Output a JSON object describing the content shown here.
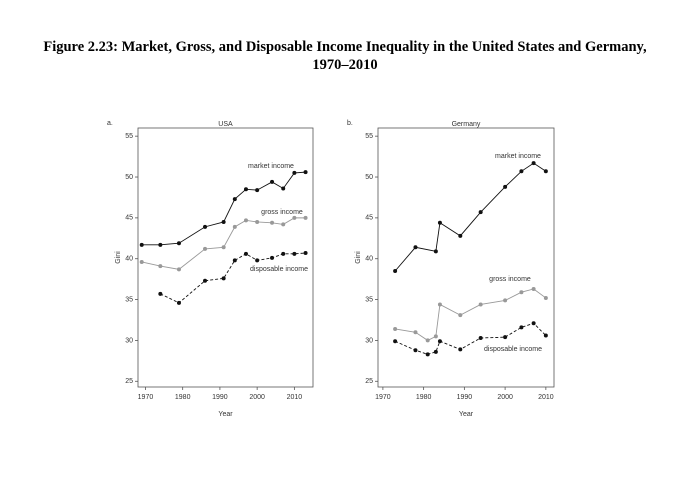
{
  "title": "Figure 2.23: Market, Gross, and Disposable Income Inequality in the United States and Germany, 1970–2010",
  "chart_data": [
    {
      "type": "line",
      "label": "a.",
      "title": "USA",
      "x_label": "Year",
      "y_label": "Gini",
      "xlim": [
        1968,
        2015
      ],
      "xticks": [
        1970,
        1980,
        1990,
        2000,
        2010
      ],
      "ylim": [
        24.3,
        56
      ],
      "yticks": [
        25,
        30,
        35,
        40,
        45,
        50,
        55
      ],
      "series": [
        {
          "name": "market income",
          "color": "#111111",
          "dashed": false,
          "x": [
            1969,
            1974,
            1979,
            1986,
            1991,
            1994,
            1997,
            2000,
            2004,
            2007,
            2010,
            2013
          ],
          "values": [
            41.7,
            41.7,
            41.9,
            43.9,
            44.5,
            47.3,
            48.5,
            48.4,
            49.4,
            48.6,
            50.5,
            50.6
          ]
        },
        {
          "name": "gross income",
          "color": "#999999",
          "dashed": false,
          "x": [
            1969,
            1974,
            1979,
            1986,
            1991,
            1994,
            1997,
            2000,
            2004,
            2007,
            2010,
            2013
          ],
          "values": [
            39.6,
            39.1,
            38.7,
            41.2,
            41.4,
            43.9,
            44.7,
            44.5,
            44.4,
            44.2,
            45.0,
            45.0
          ]
        },
        {
          "name": "disposable income",
          "color": "#111111",
          "dashed": true,
          "x": [
            1974,
            1979,
            1986,
            1991,
            1994,
            1997,
            2000,
            2004,
            2007,
            2010,
            2013
          ],
          "values": [
            35.7,
            34.6,
            37.3,
            37.6,
            39.8,
            40.6,
            39.8,
            40.1,
            40.6,
            40.6,
            40.7
          ]
        }
      ]
    },
    {
      "type": "line",
      "label": "b.",
      "title": "Germany",
      "x_label": "Year",
      "y_label": "Gini",
      "xlim": [
        1968.8,
        2012
      ],
      "xticks": [
        1970,
        1980,
        1990,
        2000,
        2010
      ],
      "ylim": [
        24.3,
        56
      ],
      "yticks": [
        25,
        30,
        35,
        40,
        45,
        50,
        55
      ],
      "series": [
        {
          "name": "market income",
          "color": "#111111",
          "dashed": false,
          "x": [
            1973,
            1978,
            1983,
            1984,
            1989,
            1994,
            2000,
            2004,
            2007,
            2010
          ],
          "values": [
            38.5,
            41.4,
            40.9,
            44.4,
            42.8,
            45.7,
            48.8,
            50.7,
            51.7,
            50.7
          ]
        },
        {
          "name": "gross income",
          "color": "#999999",
          "dashed": false,
          "x": [
            1973,
            1978,
            1981,
            1983,
            1984,
            1989,
            1994,
            2000,
            2004,
            2007,
            2010
          ],
          "values": [
            31.4,
            31.0,
            30.0,
            30.5,
            34.4,
            33.1,
            34.4,
            34.9,
            35.9,
            36.3,
            35.2
          ]
        },
        {
          "name": "disposable income",
          "color": "#111111",
          "dashed": true,
          "x": [
            1973,
            1978,
            1981,
            1983,
            1984,
            1989,
            1994,
            2000,
            2004,
            2007,
            2010
          ],
          "values": [
            29.9,
            28.8,
            28.3,
            28.6,
            29.9,
            28.9,
            30.3,
            30.4,
            31.6,
            32.1,
            30.6
          ]
        }
      ]
    }
  ]
}
